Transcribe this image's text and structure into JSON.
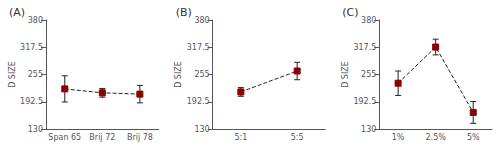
{
  "chart_data": [
    {
      "type": "line",
      "title": "(A)",
      "ylabel": "D SIZE",
      "categories": [
        "Span 65",
        "Brij 72",
        "Brij 78"
      ],
      "values": [
        222,
        213,
        210
      ],
      "errors": [
        30,
        10,
        20
      ],
      "color": "#222222",
      "colors": [
        "#8B0000",
        "#8B0000",
        "#8B0000"
      ],
      "marker": "square",
      "line_style": "dashed",
      "ylim": [
        130,
        380
      ],
      "yticks": [
        130,
        192.5,
        255,
        317.5,
        380
      ],
      "grid": false
    },
    {
      "type": "line",
      "title": "(B)",
      "ylabel": "D SIZE",
      "categories": [
        "5:1",
        "5:5"
      ],
      "values": [
        215,
        263
      ],
      "errors": [
        10,
        20
      ],
      "color": "#222222",
      "colors": [
        "#8B0000",
        "#8B0000"
      ],
      "marker": "square",
      "line_style": "dashed",
      "ylim": [
        130,
        380
      ],
      "yticks": [
        130,
        192.5,
        255,
        317.5,
        380
      ],
      "grid": false
    },
    {
      "type": "line",
      "title": "(C)",
      "ylabel": "D SIZE",
      "categories": [
        "1%",
        "2.5%",
        "5%"
      ],
      "values": [
        235,
        318,
        168
      ],
      "errors": [
        28,
        18,
        25
      ],
      "color": "#222222",
      "colors": [
        "#8B0000",
        "#8B0000",
        "#8B0000"
      ],
      "marker": "square",
      "line_style": "dashed",
      "ylim": [
        130,
        380
      ],
      "yticks": [
        130,
        192.5,
        255,
        317.5,
        380
      ],
      "grid": false
    }
  ]
}
